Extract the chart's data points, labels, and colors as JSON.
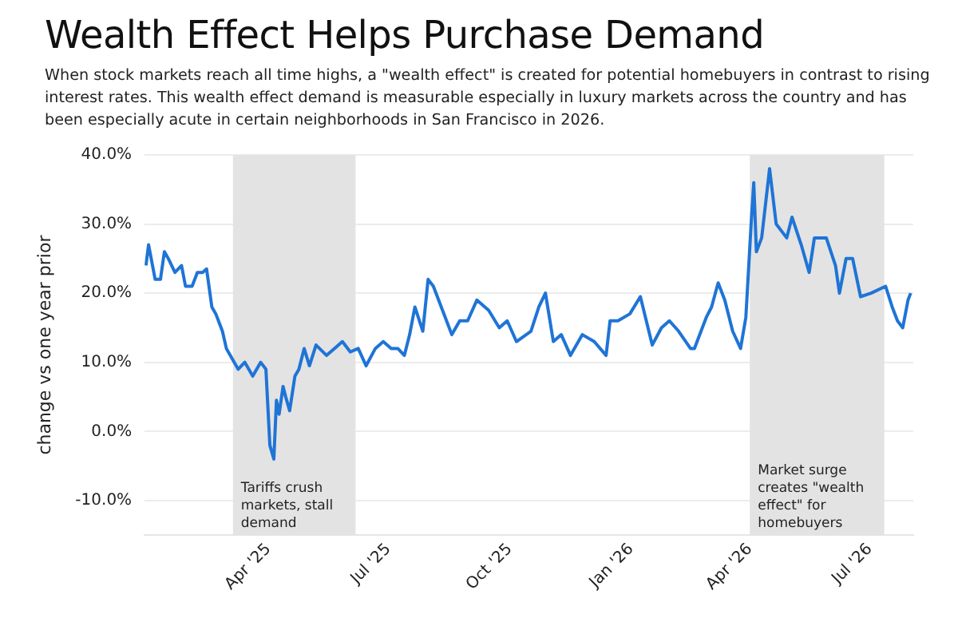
{
  "chart_data": {
    "type": "line",
    "title": "Wealth Effect Helps Purchase Demand",
    "subtitle": "When stock markets reach all time highs, a \"wealth effect\" is created for potential homebuyers in contrast to rising interest rates. This wealth effect demand is measurable especially in luxury markets across the country and has been especially acute in certain neighborhoods in San Francisco in 2026.",
    "ylabel": "change vs one year prior",
    "x": [
      "2024-12-29",
      "2024-12-31",
      "2025-01-03",
      "2025-01-05",
      "2025-01-09",
      "2025-01-12",
      "2025-01-15",
      "2025-01-20",
      "2025-01-25",
      "2025-01-28",
      "2025-02-02",
      "2025-02-06",
      "2025-02-10",
      "2025-02-13",
      "2025-02-17",
      "2025-02-20",
      "2025-02-25",
      "2025-02-28",
      "2025-03-09",
      "2025-03-14",
      "2025-03-20",
      "2025-03-26",
      "2025-03-30",
      "2025-04-02",
      "2025-04-05",
      "2025-04-07",
      "2025-04-09",
      "2025-04-12",
      "2025-04-14",
      "2025-04-17",
      "2025-04-21",
      "2025-04-24",
      "2025-04-28",
      "2025-05-02",
      "2025-05-07",
      "2025-05-15",
      "2025-05-21",
      "2025-05-27",
      "2025-06-02",
      "2025-06-08",
      "2025-06-14",
      "2025-06-21",
      "2025-06-27",
      "2025-07-03",
      "2025-07-08",
      "2025-07-13",
      "2025-07-17",
      "2025-07-21",
      "2025-07-27",
      "2025-07-31",
      "2025-08-04",
      "2025-08-10",
      "2025-08-18",
      "2025-08-24",
      "2025-08-30",
      "2025-09-06",
      "2025-09-15",
      "2025-09-23",
      "2025-09-29",
      "2025-10-06",
      "2025-10-17",
      "2025-10-23",
      "2025-10-28",
      "2025-11-03",
      "2025-11-09",
      "2025-11-16",
      "2025-11-25",
      "2025-12-04",
      "2025-12-13",
      "2025-12-16",
      "2025-12-22",
      "2025-12-31",
      "2026-01-08",
      "2026-01-17",
      "2026-01-24",
      "2026-01-30",
      "2026-02-06",
      "2026-02-15",
      "2026-02-18",
      "2026-02-27",
      "2026-03-03",
      "2026-03-08",
      "2026-03-13",
      "2026-03-19",
      "2026-03-25",
      "2026-03-29",
      "2026-04-02",
      "2026-04-04",
      "2026-04-06",
      "2026-04-10",
      "2026-04-16",
      "2026-04-21",
      "2026-04-29",
      "2026-05-03",
      "2026-05-10",
      "2026-05-16",
      "2026-05-20",
      "2026-05-29",
      "2026-06-05",
      "2026-06-08",
      "2026-06-13",
      "2026-06-18",
      "2026-06-24",
      "2026-07-02",
      "2026-07-13",
      "2026-07-18",
      "2026-07-22",
      "2026-07-26",
      "2026-07-30",
      "2026-08-01"
    ],
    "series": [
      {
        "color": "#1f74d6",
        "values": [
          24,
          27,
          24,
          22,
          22,
          26,
          25,
          23,
          24,
          21,
          21,
          23,
          23,
          23.5,
          18,
          17,
          14.5,
          12,
          9,
          10,
          8,
          10,
          9,
          -2,
          -4,
          4.5,
          2.5,
          6.5,
          5,
          3,
          8,
          9,
          12,
          9.5,
          12.5,
          11,
          12,
          13,
          11.5,
          12,
          9.5,
          12,
          13,
          12,
          12,
          11,
          14,
          18,
          14.5,
          22,
          21,
          18,
          14,
          16,
          16,
          19,
          17.5,
          15,
          16,
          13,
          14.5,
          18,
          20,
          13,
          14,
          11,
          14,
          13,
          11,
          16,
          16,
          17,
          19.5,
          12.5,
          15,
          16,
          14.5,
          12,
          12,
          16.5,
          18,
          21.5,
          19,
          14.5,
          12,
          16.5,
          30,
          36,
          26,
          28,
          38,
          30,
          28,
          31,
          27,
          23,
          28,
          28,
          24,
          20,
          25,
          25,
          19.5,
          20,
          21,
          18,
          16,
          15,
          19,
          20
        ]
      }
    ],
    "xlim": [
      "2024-12-28",
      "2026-08-03"
    ],
    "xticks": [
      {
        "value": "2025-04-01",
        "label": "Apr '25"
      },
      {
        "value": "2025-07-01",
        "label": "Jul '25"
      },
      {
        "value": "2025-10-01",
        "label": "Oct '25"
      },
      {
        "value": "2026-01-01",
        "label": "Jan '26"
      },
      {
        "value": "2026-04-01",
        "label": "Apr '26"
      },
      {
        "value": "2026-07-01",
        "label": "Jul '26"
      }
    ],
    "ylim": [
      -15,
      40
    ],
    "yticks": [
      {
        "value": -10,
        "label": "-10.0%"
      },
      {
        "value": 0,
        "label": "0.0%"
      },
      {
        "value": 10,
        "label": "10.0%"
      },
      {
        "value": 20,
        "label": "20.0%"
      },
      {
        "value": 30,
        "label": "30.0%"
      },
      {
        "value": 40,
        "label": "40.0%"
      }
    ],
    "grid": "y",
    "legend": false,
    "marker": "none",
    "line_style": "solid",
    "bands": [
      {
        "axis": "x",
        "from": "2025-03-05",
        "to": "2025-06-06",
        "label": "Tariffs crush markets, stall demand",
        "color": "#e3e3e3"
      },
      {
        "axis": "x",
        "from": "2026-04-01",
        "to": "2026-07-12",
        "label": "Market surge creates \"wealth effect\" for homebuyers",
        "color": "#e3e3e3"
      }
    ]
  }
}
